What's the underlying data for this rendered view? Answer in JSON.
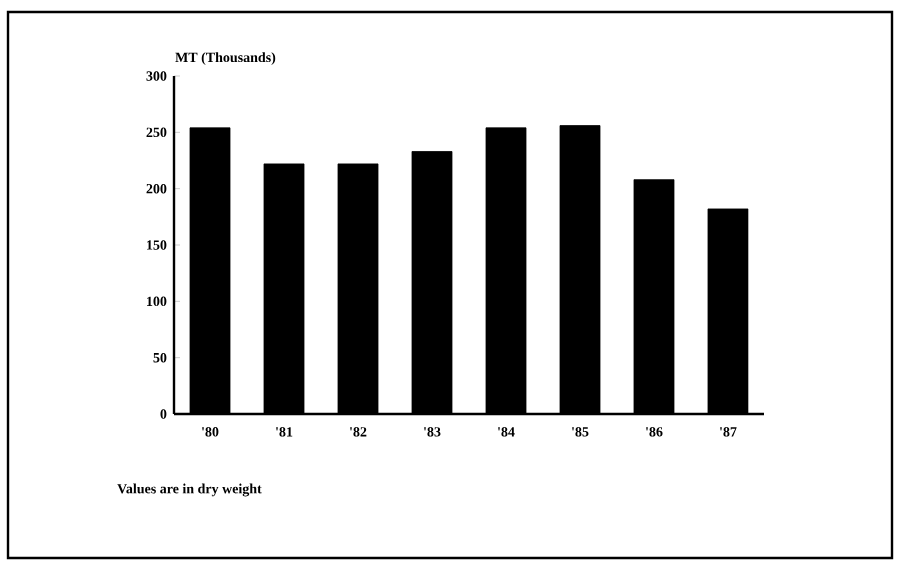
{
  "chart_data": {
    "type": "bar",
    "ylabel": "MT (Thousands)",
    "categories": [
      "'80",
      "'81",
      "'82",
      "'83",
      "'84",
      "'85",
      "'86",
      "'87"
    ],
    "values": [
      254,
      222,
      222,
      233,
      254,
      256,
      208,
      182
    ],
    "color": "#000000",
    "ylim": [
      0,
      300
    ],
    "yticks": [
      0,
      50,
      100,
      150,
      200,
      250,
      300
    ],
    "grid": false,
    "annotations": [
      "Values are in dry weight"
    ]
  }
}
